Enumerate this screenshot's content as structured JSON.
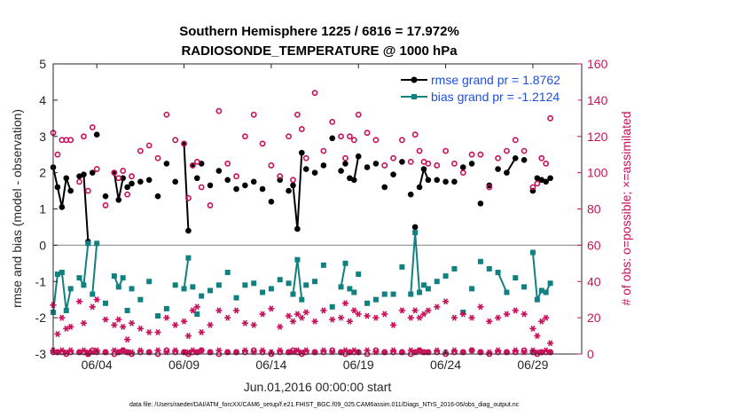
{
  "chart_data": {
    "type": "line",
    "title": "Southern Hemisphere 1225 / 6816 = 17.972%",
    "subtitle": "RADIOSONDE_TEMPERATURE @ 1000 hPa",
    "xlabel": "Jun.01,2016 00:00:00 start",
    "ylabel": "rmse and bias (model - observation)",
    "ylabel_right": "# of obs: o=possible; ×=assimilated",
    "xlim": [
      0.5,
      30.8
    ],
    "ylim": [
      -3,
      5
    ],
    "ylim_right": [
      0,
      160
    ],
    "x_ticks": [
      3,
      8,
      13,
      18,
      23,
      28
    ],
    "x_tick_labels": [
      "06/04",
      "06/09",
      "06/14",
      "06/19",
      "06/24",
      "06/29"
    ],
    "y_ticks": [
      -3,
      -2,
      -1,
      0,
      1,
      2,
      3,
      4,
      5
    ],
    "y_tick_labels": [
      "-3",
      "-2",
      "-1",
      "0",
      "1",
      "2",
      "3",
      "4",
      "5"
    ],
    "y_ticks_right": [
      0,
      20,
      40,
      60,
      80,
      100,
      120,
      140,
      160
    ],
    "y_tick_labels_right": [
      "0",
      "20",
      "40",
      "60",
      "80",
      "100",
      "120",
      "140",
      "160"
    ],
    "zero_line": 0,
    "legend": [
      {
        "label": "rmse grand pr = 1.8762",
        "color": "#000000"
      },
      {
        "label": "bias grand pr = -1.2124",
        "color": "#118080"
      }
    ],
    "series": [
      {
        "name": "rmse",
        "axis": "left",
        "color": "#000000",
        "x": [
          0.5,
          0.75,
          1.0,
          1.25,
          1.5,
          2.0,
          2.25,
          2.5,
          2.75,
          3.0,
          3.5,
          4.0,
          4.25,
          4.5,
          4.75,
          5.0,
          5.5,
          6.0,
          6.5,
          7.0,
          7.5,
          8.0,
          8.25,
          8.5,
          8.75,
          9.0,
          9.5,
          10.0,
          10.5,
          11.0,
          11.5,
          12.0,
          12.5,
          13.0,
          13.5,
          14.0,
          14.25,
          14.5,
          14.75,
          15.0,
          15.5,
          16.0,
          16.5,
          17.0,
          17.25,
          17.5,
          17.75,
          18.0,
          18.5,
          19.0,
          19.5,
          20.0,
          20.5,
          21.0,
          21.25,
          21.5,
          21.75,
          22.0,
          22.5,
          23.0,
          23.5,
          24.0,
          24.5,
          25.0,
          25.5,
          26.0,
          26.5,
          27.0,
          27.5,
          28.0,
          28.25,
          28.5,
          28.75,
          29.0
        ],
        "values": [
          2.15,
          1.6,
          1.05,
          1.85,
          1.5,
          1.9,
          1.95,
          0.1,
          2.0,
          3.05,
          1.35,
          2.0,
          1.25,
          1.85,
          1.6,
          1.7,
          1.75,
          1.8,
          1.35,
          2.25,
          1.75,
          2.8,
          0.4,
          2.2,
          1.85,
          2.25,
          1.65,
          2.05,
          1.8,
          1.55,
          1.65,
          1.75,
          1.55,
          1.2,
          1.8,
          1.5,
          1.65,
          0.45,
          2.55,
          2.1,
          2.0,
          2.2,
          2.95,
          2.05,
          2.25,
          1.85,
          1.8,
          2.45,
          2.15,
          2.25,
          1.6,
          1.95,
          2.3,
          1.4,
          0.5,
          1.6,
          2.1,
          1.8,
          1.8,
          1.75,
          1.75,
          2.15,
          2.25,
          1.15,
          1.65,
          2.1,
          2.0,
          2.4,
          2.35,
          1.5,
          1.85,
          1.8,
          1.75,
          1.85
        ],
        "segments": [
          [
            0,
            4
          ],
          [
            5,
            7
          ],
          [
            11,
            13
          ],
          [
            21,
            22
          ],
          [
            36,
            38
          ],
          [
            46,
            47
          ],
          [
            55,
            57
          ],
          [
            66,
            67
          ],
          [
            71,
            73
          ]
        ]
      },
      {
        "name": "bias",
        "axis": "left",
        "color": "#118080",
        "x": [
          0.5,
          0.75,
          1.0,
          1.25,
          1.5,
          2.0,
          2.25,
          2.5,
          2.75,
          3.0,
          3.5,
          4.0,
          4.25,
          4.5,
          4.75,
          5.0,
          5.5,
          6.0,
          6.5,
          7.0,
          7.5,
          8.0,
          8.25,
          8.5,
          8.75,
          9.0,
          9.5,
          10.0,
          10.5,
          11.0,
          11.5,
          12.0,
          12.5,
          13.0,
          13.5,
          14.0,
          14.25,
          14.5,
          14.75,
          15.0,
          15.5,
          16.0,
          16.5,
          17.0,
          17.25,
          17.5,
          17.75,
          18.0,
          18.5,
          19.0,
          19.5,
          20.0,
          20.5,
          21.0,
          21.25,
          21.5,
          21.75,
          22.0,
          22.5,
          23.0,
          23.5,
          24.0,
          24.5,
          25.0,
          25.5,
          26.0,
          26.5,
          27.0,
          27.5,
          28.0,
          28.25,
          28.5,
          28.75,
          29.0
        ],
        "values": [
          -1.85,
          -0.8,
          -0.75,
          -1.8,
          -1.2,
          -0.9,
          -1.1,
          0.05,
          -1.35,
          0.05,
          -1.6,
          -0.85,
          -1.15,
          -0.9,
          -1.8,
          -1.2,
          -1.5,
          -1.0,
          -1.95,
          -1.75,
          -1.1,
          -1.2,
          -0.35,
          -1.15,
          -1.9,
          -1.4,
          -1.25,
          -1.1,
          -0.75,
          -1.45,
          -1.1,
          -1.05,
          -1.3,
          -1.2,
          -0.95,
          -1.05,
          -1.35,
          -0.4,
          -1.5,
          -1.1,
          -1.0,
          -0.55,
          -1.7,
          -1.15,
          -0.5,
          -1.2,
          -1.3,
          -0.8,
          -1.6,
          -1.5,
          -1.35,
          -1.35,
          -0.6,
          -1.35,
          0.35,
          -1.3,
          -1.1,
          -1.2,
          -1.0,
          -0.85,
          -0.65,
          -1.85,
          -1.2,
          -0.45,
          -0.65,
          -0.75,
          -1.3,
          -0.9,
          -1.15,
          -0.2,
          -1.5,
          -1.25,
          -1.3,
          -1.05
        ],
        "segments": [
          [
            0,
            4
          ],
          [
            5,
            7
          ],
          [
            8,
            9
          ],
          [
            11,
            13
          ],
          [
            21,
            22
          ],
          [
            36,
            38
          ],
          [
            43,
            44
          ],
          [
            53,
            55
          ],
          [
            65,
            66
          ],
          [
            69,
            71
          ],
          [
            72,
            73
          ]
        ]
      },
      {
        "name": "possible obs",
        "axis": "right",
        "color": "#c8105a",
        "marker": "circle",
        "x": [
          0.5,
          0.75,
          1.0,
          1.25,
          1.5,
          2.0,
          2.25,
          2.5,
          2.75,
          3.0,
          3.5,
          4.0,
          4.25,
          4.5,
          4.75,
          5.0,
          5.5,
          6.0,
          6.5,
          7.0,
          7.5,
          8.0,
          8.25,
          8.5,
          8.75,
          9.0,
          9.5,
          10.0,
          10.5,
          11.0,
          11.5,
          12.0,
          12.5,
          13.0,
          13.5,
          14.0,
          14.25,
          14.5,
          14.75,
          15.0,
          15.5,
          16.0,
          16.5,
          17.0,
          17.25,
          17.5,
          17.75,
          18.0,
          18.5,
          19.0,
          19.5,
          20.0,
          20.5,
          21.0,
          21.25,
          21.5,
          21.75,
          22.0,
          22.5,
          23.0,
          23.5,
          24.0,
          24.5,
          25.0,
          25.5,
          26.0,
          26.5,
          27.0,
          27.5,
          28.0,
          28.25,
          28.5,
          28.75,
          29.0
        ],
        "values": [
          122,
          110,
          118,
          118,
          118,
          95,
          120,
          90,
          125,
          102,
          82,
          100,
          97,
          101,
          88,
          98,
          112,
          115,
          108,
          132,
          118,
          116,
          86,
          104,
          106,
          92,
          82,
          134,
          105,
          98,
          120,
          132,
          116,
          104,
          98,
          120,
          96,
          132,
          124,
          108,
          144,
          112,
          128,
          120,
          108,
          120,
          118,
          132,
          122,
          118,
          104,
          108,
          118,
          106,
          121,
          112,
          106,
          105,
          104,
          112,
          105,
          100,
          110,
          110,
          92,
          108,
          112,
          118,
          112,
          92,
          94,
          108,
          105,
          130
        ],
        "values_low": [
          1,
          1,
          1,
          0,
          1,
          1,
          1,
          0,
          2,
          1,
          1,
          0,
          1,
          2,
          1,
          0,
          1,
          1,
          0,
          2,
          1,
          1,
          0,
          1,
          1,
          2,
          1,
          0,
          1,
          1,
          1,
          2,
          1,
          0,
          1,
          1,
          2,
          1,
          0,
          1,
          1,
          1,
          2,
          1,
          0,
          1,
          1,
          1,
          0,
          2,
          1,
          1,
          1,
          0,
          1,
          2,
          1,
          1,
          1,
          0,
          1,
          1,
          2,
          1,
          0,
          1,
          1,
          1,
          2,
          1,
          0,
          1,
          1,
          1
        ]
      },
      {
        "name": "assimilated obs",
        "axis": "right",
        "color": "#c8105a",
        "marker": "asterisk",
        "x": [
          0.5,
          0.75,
          1.0,
          1.25,
          1.5,
          2.0,
          2.25,
          2.5,
          2.75,
          3.0,
          3.5,
          4.0,
          4.25,
          4.5,
          4.75,
          5.0,
          5.5,
          6.0,
          6.5,
          7.0,
          7.5,
          8.0,
          8.25,
          8.5,
          8.75,
          9.0,
          9.5,
          10.0,
          10.5,
          11.0,
          11.5,
          12.0,
          12.5,
          13.0,
          13.5,
          14.0,
          14.25,
          14.5,
          14.75,
          15.0,
          15.5,
          16.0,
          16.5,
          17.0,
          17.25,
          17.5,
          17.75,
          18.0,
          18.5,
          19.0,
          19.5,
          20.0,
          20.5,
          21.0,
          21.25,
          21.5,
          21.75,
          22.0,
          22.5,
          23.0,
          23.5,
          24.0,
          24.5,
          25.0,
          25.5,
          26.0,
          26.5,
          27.0,
          27.5,
          28.0,
          28.25,
          28.5,
          28.75,
          29.0
        ],
        "values": [
          27,
          11,
          20,
          14,
          15,
          29,
          17,
          0,
          26,
          30,
          19,
          16,
          19,
          15,
          8,
          17,
          14,
          12,
          12,
          20,
          16,
          18,
          10,
          24,
          26,
          12,
          16,
          24,
          20,
          24,
          17,
          16,
          22,
          25,
          15,
          21,
          18,
          22,
          20,
          23,
          18,
          24,
          19,
          20,
          28,
          18,
          24,
          22,
          21,
          20,
          22,
          16,
          24,
          20,
          24,
          20,
          22,
          24,
          26,
          29,
          20,
          22,
          20,
          26,
          18,
          20,
          22,
          24,
          22,
          14,
          10,
          18,
          20,
          6
        ],
        "values_low": [
          2,
          1,
          2,
          1,
          2,
          1,
          2,
          1,
          1,
          2,
          1,
          2,
          1,
          2,
          1,
          1,
          2,
          1,
          2,
          1,
          2,
          1,
          1,
          2,
          1,
          2,
          1,
          2,
          1,
          1,
          2,
          1,
          2,
          1,
          2,
          1,
          1,
          2,
          1,
          2,
          1,
          2,
          1,
          1,
          2,
          1,
          2,
          1,
          2,
          1,
          1,
          2,
          1,
          2,
          1,
          2,
          1,
          1,
          2,
          1,
          2,
          1,
          2,
          1,
          1,
          2,
          1,
          2,
          1,
          2,
          1,
          1,
          2,
          1
        ]
      }
    ]
  },
  "footer": "data file: /Users/raeder/DAI/ATM_forcXX/CAM6_setup/f.e21.FHIST_BGC.f09_025.CAM6assim.011/Diags_NTrS_2016-06/obs_diag_output.nc"
}
